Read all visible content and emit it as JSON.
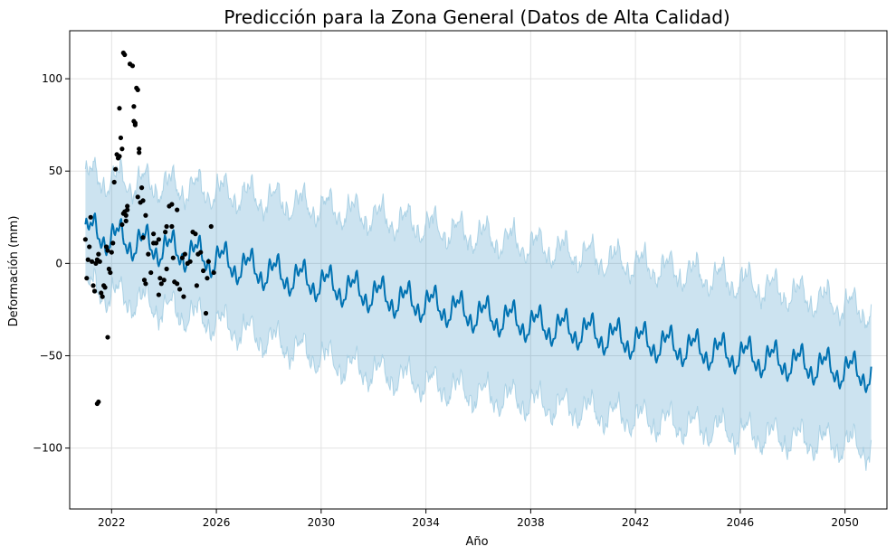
{
  "chart_data": {
    "type": "line",
    "title": "Predicción para la Zona General (Datos de Alta Calidad)",
    "xlabel": "Año",
    "ylabel": "Deformación (mm)",
    "xlim": [
      2020.4,
      2051.6
    ],
    "ylim": [
      -133,
      126
    ],
    "x_ticks": [
      2022,
      2026,
      2030,
      2034,
      2038,
      2042,
      2046,
      2050
    ],
    "x_tick_labels": [
      "2022",
      "2026",
      "2030",
      "2034",
      "2038",
      "2042",
      "2046",
      "2050"
    ],
    "y_ticks": [
      100,
      50,
      0,
      -50,
      -100
    ],
    "y_tick_labels": [
      "100",
      "50",
      "0",
      "−50",
      "−100"
    ],
    "grid": true,
    "legend": "none",
    "colors": {
      "forecast_line": "#0072B2",
      "uncertainty_fill": "#0072B2",
      "uncertainty_edge": "#9ecae1",
      "observations": "#000000",
      "grid": "#e2e2e2"
    },
    "series": [
      {
        "role": "forecast",
        "x": [
          2021.0,
          2022.0,
          2023.0,
          2024.0,
          2025.0,
          2026.0,
          2027.0,
          2028.0,
          2029.0,
          2030.0,
          2031.0,
          2032.0,
          2033.0,
          2034.0,
          2035.0,
          2036.0,
          2037.0,
          2038.0,
          2039.0,
          2040.0,
          2041.0,
          2042.0,
          2043.0,
          2044.0,
          2045.0,
          2046.0,
          2047.0,
          2048.0,
          2049.0,
          2050.0,
          2051.0
        ],
        "y": [
          17,
          14,
          11,
          8,
          5,
          2,
          -2,
          -5,
          -8,
          -11,
          -14,
          -17,
          -20,
          -22,
          -25,
          -28,
          -30,
          -33,
          -35,
          -37,
          -40,
          -42,
          -44,
          -46,
          -48,
          -50,
          -52,
          -54,
          -56,
          -58,
          -60
        ],
        "seasonal_amplitude": 10
      },
      {
        "role": "uncertainty_band",
        "x": [
          2021.0,
          2026.0,
          2031.0,
          2036.0,
          2041.0,
          2046.0,
          2051.0
        ],
        "upper": [
          47,
          39,
          28,
          15,
          2,
          -10,
          -26
        ],
        "lower": [
          -13,
          -32,
          -56,
          -71,
          -82,
          -92,
          -100
        ]
      }
    ],
    "observations": {
      "x": [
        2021.0,
        2021.05,
        2021.1,
        2021.15,
        2021.2,
        2021.25,
        2021.3,
        2021.35,
        2021.4,
        2021.45,
        2021.5,
        2021.55,
        2021.6,
        2021.65,
        2021.7,
        2021.75,
        2021.8,
        2021.85,
        2021.9,
        2021.95,
        2022.0,
        2022.05,
        2022.1,
        2022.15,
        2022.2,
        2022.25,
        2022.3,
        2022.35,
        2022.4,
        2022.45,
        2022.5,
        2022.55,
        2022.6,
        2022.7,
        2022.8,
        2022.85,
        2022.9,
        2022.95,
        2023.0,
        2023.05,
        2023.1,
        2023.15,
        2023.2,
        2023.25,
        2023.3,
        2023.4,
        2023.5,
        2023.6,
        2023.7,
        2023.8,
        2023.85,
        2023.9,
        2024.0,
        2024.05,
        2024.1,
        2024.2,
        2024.3,
        2024.35,
        2024.4,
        2024.5,
        2024.6,
        2024.7,
        2024.8,
        2024.9,
        2025.0,
        2025.1,
        2025.2,
        2025.3,
        2025.4,
        2025.5,
        2025.6,
        2025.7,
        2025.8,
        2025.9,
        2021.45,
        2021.5,
        2021.85,
        2022.45,
        2022.5,
        2022.85,
        2022.9,
        2023.0,
        2023.05,
        2023.2,
        2023.3,
        2022.4,
        2022.6,
        2022.3,
        2022.55,
        2024.1,
        2024.3,
        2024.5,
        2023.6,
        2023.8,
        2024.75,
        2025.25,
        2025.65
      ],
      "y": [
        13,
        -8,
        2,
        9,
        25,
        1,
        -12,
        -15,
        0,
        2,
        5,
        1,
        -16,
        -18,
        -12,
        -13,
        9,
        7,
        -3,
        -5,
        6,
        11,
        44,
        51,
        59,
        57,
        84,
        68,
        21,
        27,
        28,
        23,
        31,
        108,
        107,
        77,
        75,
        95,
        36,
        60,
        33,
        41,
        14,
        -9,
        -11,
        5,
        -5,
        16,
        11,
        13,
        -8,
        -11,
        -9,
        17,
        20,
        31,
        32,
        3,
        -10,
        -11,
        -14,
        3,
        5,
        0,
        1,
        17,
        16,
        5,
        6,
        -4,
        -27,
        1,
        20,
        -5,
        -76,
        -75,
        -40,
        114,
        113,
        85,
        76,
        94,
        62,
        34,
        26,
        62,
        29,
        58,
        26,
        -3,
        20,
        29,
        11,
        -17,
        -18,
        -12,
        -8
      ]
    }
  }
}
